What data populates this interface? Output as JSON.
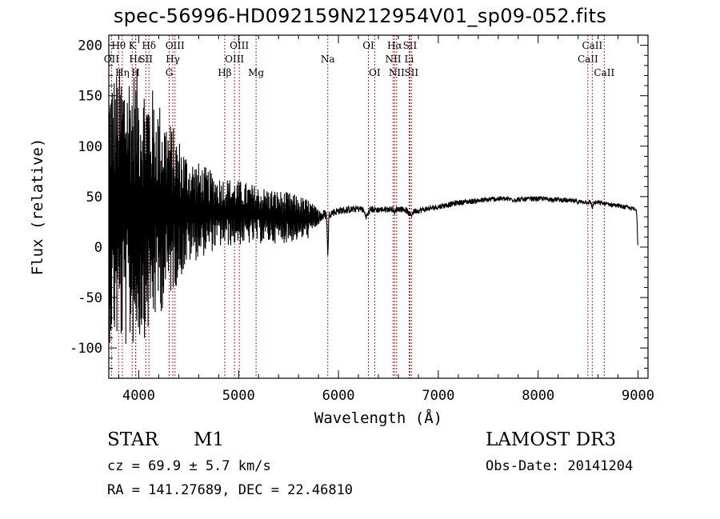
{
  "title": "spec-56996-HD092159N212954V01_sp09-052.fits",
  "info": {
    "class": "STAR",
    "subclass": "M1",
    "survey": "LAMOST DR3",
    "cz": "cz = 69.9 ± 5.7 km/s",
    "obs_date": "Obs-Date: 20141204",
    "coords": "RA = 141.27689, DEC =  22.46810"
  },
  "chart_data": {
    "type": "line",
    "title": "spec-56996-HD092159N212954V01_sp09-052.fits",
    "xlabel": "Wavelength (Å)",
    "ylabel": "Flux (relative)",
    "xlim": [
      3700,
      9100
    ],
    "ylim": [
      -130,
      210
    ],
    "xticks": [
      4000,
      5000,
      6000,
      7000,
      8000,
      9000
    ],
    "yticks": [
      -100,
      -50,
      0,
      50,
      100,
      150,
      200
    ],
    "line_color": "#000000",
    "marker_color": "#b22222",
    "lines": [
      {
        "label": "OII",
        "wave": 3727,
        "row": 2
      },
      {
        "label": "Hθ",
        "wave": 3798,
        "row": 1
      },
      {
        "label": "Hη",
        "wave": 3835,
        "row": 3
      },
      {
        "label": "K",
        "wave": 3934,
        "row": 1
      },
      {
        "label": "H",
        "wave": 3969,
        "row": 3
      },
      {
        "label": "Hε",
        "wave": 3970,
        "row": 2
      },
      {
        "label": "SII",
        "wave": 4070,
        "row": 2
      },
      {
        "label": "Hδ",
        "wave": 4102,
        "row": 1
      },
      {
        "label": "G",
        "wave": 4305,
        "row": 3
      },
      {
        "label": "Hγ",
        "wave": 4341,
        "row": 2
      },
      {
        "label": "OIII",
        "wave": 4363,
        "row": 1
      },
      {
        "label": "Hβ",
        "wave": 4861,
        "row": 3
      },
      {
        "label": "OIII",
        "wave": 4959,
        "row": 2
      },
      {
        "label": "OIII",
        "wave": 5007,
        "row": 1
      },
      {
        "label": "Mg",
        "wave": 5175,
        "row": 3
      },
      {
        "label": "Na",
        "wave": 5893,
        "row": 2
      },
      {
        "label": "OI",
        "wave": 6300,
        "row": 1
      },
      {
        "label": "OI",
        "wave": 6363,
        "row": 3
      },
      {
        "label": "NII",
        "wave": 6548,
        "row": 2
      },
      {
        "label": "Hα",
        "wave": 6563,
        "row": 1
      },
      {
        "label": "NII",
        "wave": 6583,
        "row": 3
      },
      {
        "label": "SII",
        "wave": 6716,
        "row": 1
      },
      {
        "label": "Li",
        "wave": 6708,
        "row": 2
      },
      {
        "label": "SII",
        "wave": 6731,
        "row": 3
      },
      {
        "label": "CaII",
        "wave": 8498,
        "row": 2
      },
      {
        "label": "CaII",
        "wave": 8542,
        "row": 1
      },
      {
        "label": "CaII",
        "wave": 8662,
        "row": 3
      }
    ],
    "continuum": [
      [
        3700,
        40
      ],
      [
        4000,
        40
      ],
      [
        4300,
        38
      ],
      [
        4600,
        36
      ],
      [
        5000,
        34
      ],
      [
        5400,
        30
      ],
      [
        5700,
        28
      ],
      [
        5800,
        30
      ],
      [
        5900,
        33
      ],
      [
        6000,
        36
      ],
      [
        6200,
        38
      ],
      [
        6400,
        37
      ],
      [
        6600,
        38
      ],
      [
        6800,
        36
      ],
      [
        7000,
        40
      ],
      [
        7200,
        44
      ],
      [
        7400,
        46
      ],
      [
        7600,
        48
      ],
      [
        7800,
        47
      ],
      [
        8000,
        48
      ],
      [
        8200,
        47
      ],
      [
        8400,
        45
      ],
      [
        8600,
        44
      ],
      [
        8800,
        41
      ],
      [
        8950,
        38
      ],
      [
        9000,
        35
      ]
    ],
    "noise_envelope": [
      [
        3700,
        150
      ],
      [
        3900,
        160
      ],
      [
        4100,
        140
      ],
      [
        4300,
        100
      ],
      [
        4500,
        60
      ],
      [
        4800,
        40
      ],
      [
        5200,
        32
      ],
      [
        5500,
        28
      ],
      [
        5700,
        22
      ],
      [
        5800,
        8
      ],
      [
        5900,
        4
      ],
      [
        6500,
        3
      ],
      [
        9000,
        2
      ]
    ],
    "absorption_dips": [
      {
        "wave": 5893,
        "depth": 38,
        "width": 8
      },
      {
        "wave": 6280,
        "depth": 7,
        "width": 25
      },
      {
        "wave": 6563,
        "depth": 5,
        "width": 8
      },
      {
        "wave": 6720,
        "depth": 5,
        "width": 30
      },
      {
        "wave": 8542,
        "depth": 5,
        "width": 10
      },
      {
        "wave": 9000,
        "depth": 35,
        "width": 8
      }
    ]
  }
}
